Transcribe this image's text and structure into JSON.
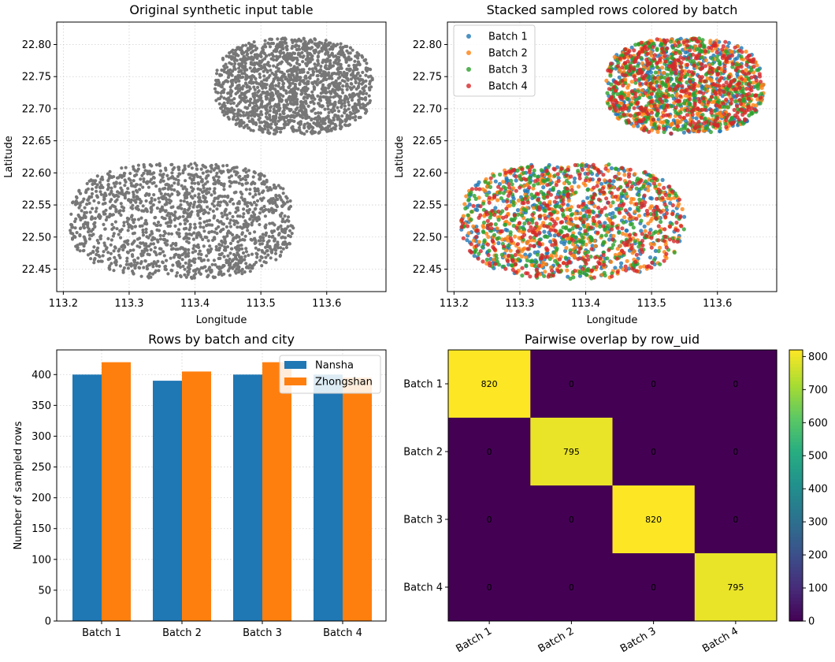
{
  "chart_data": [
    {
      "type": "scatter",
      "title": "Original synthetic input table",
      "xlabel": "Longitude",
      "ylabel": "Latitude",
      "xlim": [
        113.19,
        113.69
      ],
      "ylim": [
        22.415,
        22.835
      ],
      "xticks": [
        113.2,
        113.3,
        113.4,
        113.5,
        113.6
      ],
      "yticks": [
        22.45,
        22.5,
        22.55,
        22.6,
        22.65,
        22.7,
        22.75,
        22.8
      ],
      "grid": true,
      "point_color": "#777777",
      "clusters": [
        {
          "name": "Nansha",
          "center": [
            113.38,
            22.525
          ],
          "extent_x": [
            113.21,
            113.55
          ],
          "extent_y": [
            22.435,
            22.615
          ],
          "approx_points": 1600
        },
        {
          "name": "Zhongshan",
          "center": [
            113.55,
            22.735
          ],
          "extent_x": [
            113.43,
            113.67
          ],
          "extent_y": [
            22.66,
            22.81
          ],
          "approx_points": 1700
        }
      ]
    },
    {
      "type": "scatter",
      "title": "Stacked sampled rows colored by batch",
      "xlabel": "Longitude",
      "ylabel": "Latitude",
      "xlim": [
        113.19,
        113.69
      ],
      "ylim": [
        22.415,
        22.835
      ],
      "xticks": [
        113.2,
        113.3,
        113.4,
        113.5,
        113.6
      ],
      "yticks": [
        22.45,
        22.5,
        22.55,
        22.6,
        22.65,
        22.7,
        22.75,
        22.8
      ],
      "grid": true,
      "legend": "top-left",
      "series": [
        {
          "name": "Batch 1",
          "color": "#1f77b4",
          "approx_points": 820
        },
        {
          "name": "Batch 2",
          "color": "#ff7f0e",
          "approx_points": 795
        },
        {
          "name": "Batch 3",
          "color": "#2ca02c",
          "approx_points": 820
        },
        {
          "name": "Batch 4",
          "color": "#d62728",
          "approx_points": 795
        }
      ]
    },
    {
      "type": "bar",
      "title": "Rows by batch and city",
      "xlabel": "",
      "ylabel": "Number of sampled rows",
      "categories": [
        "Batch 1",
        "Batch 2",
        "Batch 3",
        "Batch 4"
      ],
      "series": [
        {
          "name": "Nansha",
          "color": "#1f77b4",
          "values": [
            400,
            390,
            400,
            400
          ]
        },
        {
          "name": "Zhongshan",
          "color": "#ff7f0e",
          "values": [
            420,
            405,
            420,
            395
          ]
        }
      ],
      "ylim": [
        0,
        440
      ],
      "yticks": [
        0,
        50,
        100,
        150,
        200,
        250,
        300,
        350,
        400
      ],
      "grid": true,
      "legend": "top-right"
    },
    {
      "type": "heatmap",
      "title": "Pairwise overlap by row_uid",
      "rows": [
        "Batch 1",
        "Batch 2",
        "Batch 3",
        "Batch 4"
      ],
      "cols": [
        "Batch 1",
        "Batch 2",
        "Batch 3",
        "Batch 4"
      ],
      "values": [
        [
          820,
          0,
          0,
          0
        ],
        [
          0,
          795,
          0,
          0
        ],
        [
          0,
          0,
          820,
          0
        ],
        [
          0,
          0,
          0,
          795
        ]
      ],
      "colorbar_ticks": [
        0,
        100,
        200,
        300,
        400,
        500,
        600,
        700,
        800
      ],
      "colorbar_range": [
        0,
        820
      ],
      "colormap": "viridis"
    }
  ]
}
